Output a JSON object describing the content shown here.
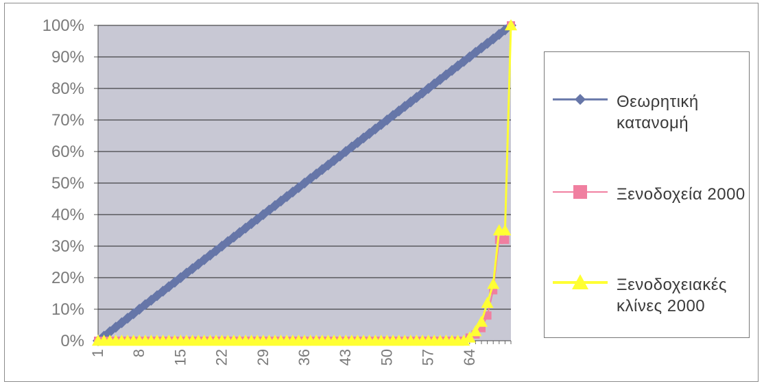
{
  "chart_data": {
    "type": "line",
    "title": "",
    "xlabel": "",
    "ylabel": "",
    "ylim": [
      0,
      100
    ],
    "y_ticks": [
      "0%",
      "10%",
      "20%",
      "30%",
      "40%",
      "50%",
      "60%",
      "70%",
      "80%",
      "90%",
      "100%"
    ],
    "x_ticks": [
      "1",
      "8",
      "15",
      "22",
      "29",
      "36",
      "43",
      "50",
      "57",
      "64"
    ],
    "x_count": 71,
    "grid": true,
    "legend_position": "right",
    "series": [
      {
        "name": "Θεωρητική κατανομή",
        "color": "#6676a8",
        "marker": "diamond",
        "values_desc": "linear from 0% at x=1 to 100% at x=71"
      },
      {
        "name": "Ξενοδοχεία 2000",
        "color": "#f07fa0",
        "marker": "square",
        "values_tail": {
          "64": 1,
          "65": 2,
          "66": 4,
          "67": 8,
          "68": 16,
          "69": 32,
          "70": 32,
          "71": 100
        }
      },
      {
        "name": "Ξενοδοχειακές κλίνες 2000",
        "color": "#ffff33",
        "marker": "triangle",
        "values_tail": {
          "64": 1,
          "65": 3,
          "66": 6,
          "67": 12,
          "68": 18,
          "69": 35,
          "70": 35,
          "71": 100
        }
      }
    ]
  }
}
